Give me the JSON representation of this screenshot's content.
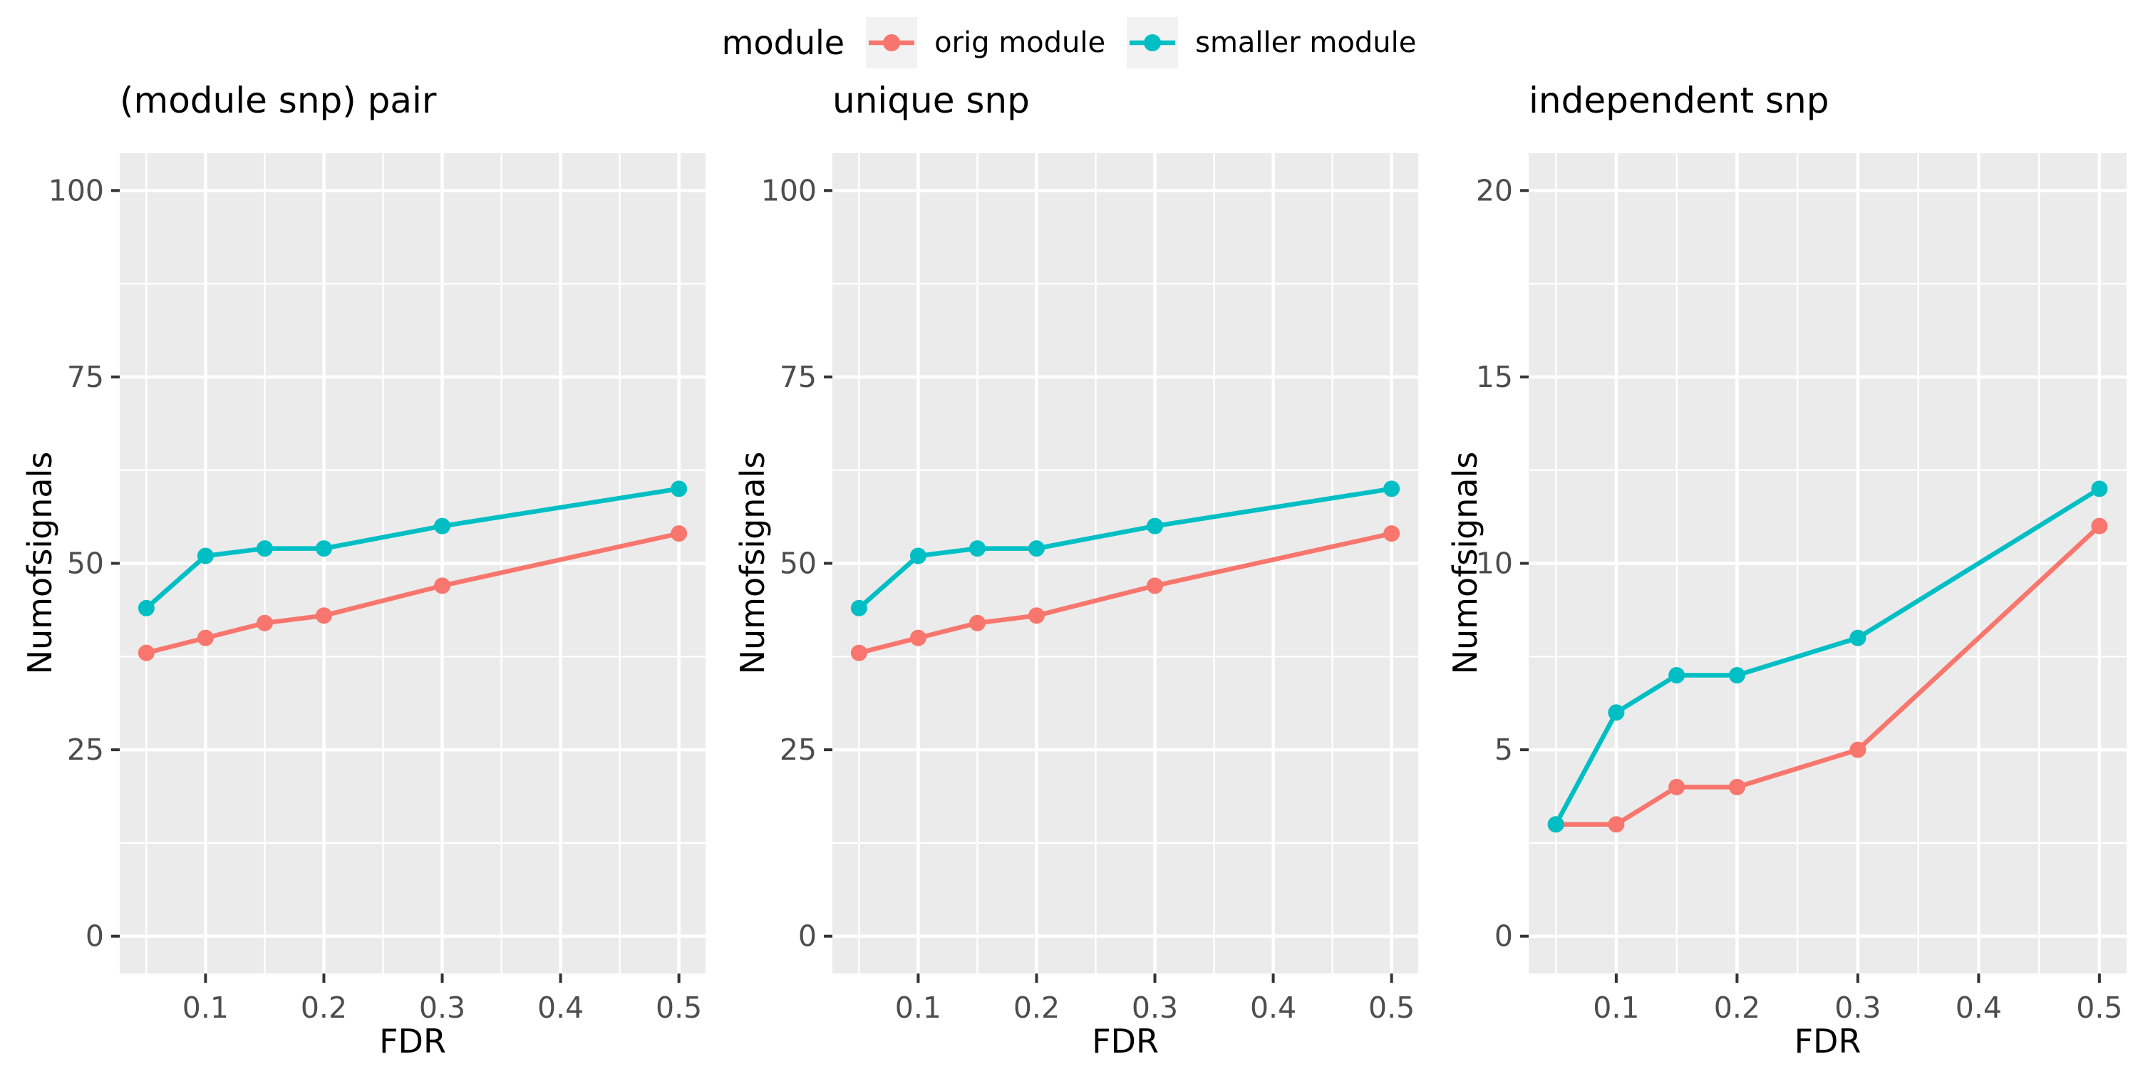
{
  "legend": {
    "title": "module",
    "items": [
      {
        "label": "orig module",
        "color": "#F8766D"
      },
      {
        "label": "smaller module",
        "color": "#00BFC4"
      }
    ]
  },
  "colors": {
    "panel_background": "#EBEBEB",
    "grid": "#FFFFFF",
    "tick_mark": "#333333",
    "tick_text": "#4D4D4D",
    "orig_module": "#F8766D",
    "smaller_module": "#00BFC4"
  },
  "chart_data": [
    {
      "type": "line",
      "title": "(module snp) pair",
      "xlabel": "FDR",
      "ylabel": "Numofsignals",
      "x": [
        0.05,
        0.1,
        0.15,
        0.2,
        0.3,
        0.5
      ],
      "series": [
        {
          "name": "orig module",
          "color": "#F8766D",
          "values": [
            38,
            40,
            42,
            43,
            47,
            54
          ]
        },
        {
          "name": "smaller module",
          "color": "#00BFC4",
          "values": [
            44,
            51,
            52,
            52,
            55,
            60
          ]
        }
      ],
      "xlim": [
        0.0275,
        0.5225
      ],
      "ylim": [
        -5,
        105
      ],
      "xticks": [
        0.1,
        0.2,
        0.3,
        0.4,
        0.5
      ],
      "yticks": [
        0,
        25,
        50,
        75,
        100
      ],
      "grid": true,
      "legend_position": "top"
    },
    {
      "type": "line",
      "title": "unique snp",
      "xlabel": "FDR",
      "ylabel": "Numofsignals",
      "x": [
        0.05,
        0.1,
        0.15,
        0.2,
        0.3,
        0.5
      ],
      "series": [
        {
          "name": "orig module",
          "color": "#F8766D",
          "values": [
            38,
            40,
            42,
            43,
            47,
            54
          ]
        },
        {
          "name": "smaller module",
          "color": "#00BFC4",
          "values": [
            44,
            51,
            52,
            52,
            55,
            60
          ]
        }
      ],
      "xlim": [
        0.0275,
        0.5225
      ],
      "ylim": [
        -5,
        105
      ],
      "xticks": [
        0.1,
        0.2,
        0.3,
        0.4,
        0.5
      ],
      "yticks": [
        0,
        25,
        50,
        75,
        100
      ],
      "grid": true,
      "legend_position": "top"
    },
    {
      "type": "line",
      "title": "independent snp",
      "xlabel": "FDR",
      "ylabel": "Numofsignals",
      "x": [
        0.05,
        0.1,
        0.15,
        0.2,
        0.3,
        0.5
      ],
      "series": [
        {
          "name": "orig module",
          "color": "#F8766D",
          "values": [
            3,
            3,
            4,
            4,
            5,
            11
          ]
        },
        {
          "name": "smaller module",
          "color": "#00BFC4",
          "values": [
            3,
            6,
            7,
            7,
            8,
            12
          ]
        }
      ],
      "xlim": [
        0.0275,
        0.5225
      ],
      "ylim": [
        -1,
        21
      ],
      "xticks": [
        0.1,
        0.2,
        0.3,
        0.4,
        0.5
      ],
      "yticks": [
        0,
        5,
        10,
        15,
        20
      ],
      "grid": true,
      "legend_position": "top"
    }
  ]
}
